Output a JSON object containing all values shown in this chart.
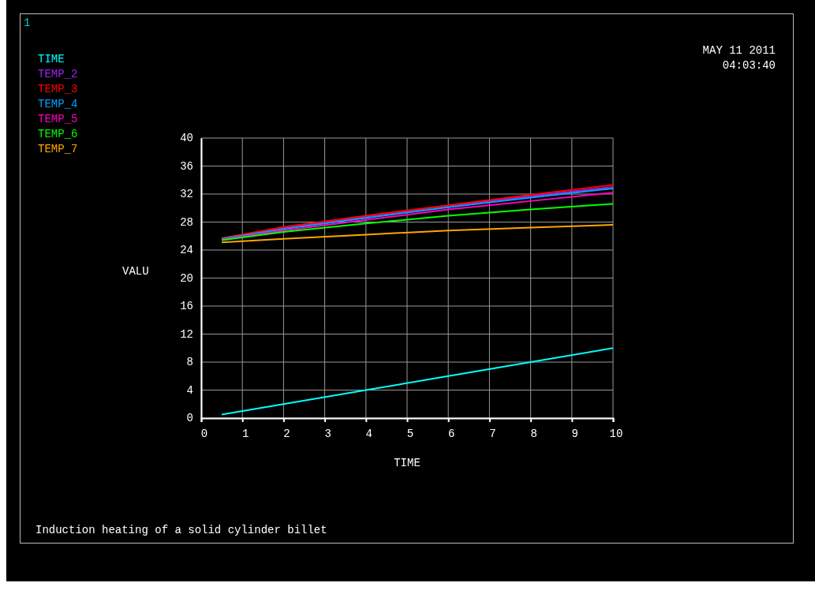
{
  "chart_data": {
    "type": "line",
    "title": "Induction heating of a solid cylinder billet",
    "xlabel": "TIME",
    "ylabel": "VALU",
    "annotations": [
      "1",
      "MAY 11 2011",
      "04:03:40"
    ],
    "xlim": [
      0,
      10
    ],
    "xticks": [
      0,
      1,
      2,
      3,
      4,
      5,
      6,
      7,
      8,
      9,
      10
    ],
    "ylim": [
      0,
      40
    ],
    "yticks": [
      0,
      4,
      8,
      12,
      16,
      20,
      24,
      28,
      32,
      36,
      40
    ],
    "grid": true,
    "legend": "top left",
    "line_style": "solid",
    "series": [
      {
        "name": "TIME",
        "color": "#00ffff",
        "x": [
          0.5,
          2,
          4,
          6,
          8,
          10
        ],
        "values": [
          0.5,
          2,
          4,
          6,
          8,
          10
        ]
      },
      {
        "name": "TEMP_2",
        "color": "#a020f0",
        "x": [
          0.5,
          2,
          4,
          6,
          8,
          10
        ],
        "values": [
          25.6,
          27.1,
          28.8,
          30.3,
          31.7,
          33.0
        ]
      },
      {
        "name": "TEMP_3",
        "color": "#ff0000",
        "x": [
          0.5,
          2,
          4,
          6,
          8,
          10
        ],
        "values": [
          25.7,
          27.3,
          28.9,
          30.4,
          31.9,
          33.3
        ]
      },
      {
        "name": "TEMP_4",
        "color": "#00a0ff",
        "x": [
          0.5,
          2,
          4,
          6,
          8,
          10
        ],
        "values": [
          25.6,
          27.0,
          28.6,
          30.1,
          31.5,
          32.8
        ]
      },
      {
        "name": "TEMP_5",
        "color": "#ff00c0",
        "x": [
          0.5,
          2,
          4,
          6,
          8,
          10
        ],
        "values": [
          25.5,
          26.8,
          28.3,
          29.8,
          31.0,
          32.2
        ]
      },
      {
        "name": "TEMP_6",
        "color": "#00ff00",
        "x": [
          0.5,
          2,
          4,
          6,
          8,
          10
        ],
        "values": [
          25.4,
          26.6,
          27.8,
          28.9,
          29.8,
          30.6
        ]
      },
      {
        "name": "TEMP_7",
        "color": "#ffa500",
        "x": [
          0.5,
          2,
          4,
          6,
          8,
          10
        ],
        "values": [
          25.1,
          25.6,
          26.2,
          26.8,
          27.2,
          27.6
        ]
      }
    ]
  }
}
